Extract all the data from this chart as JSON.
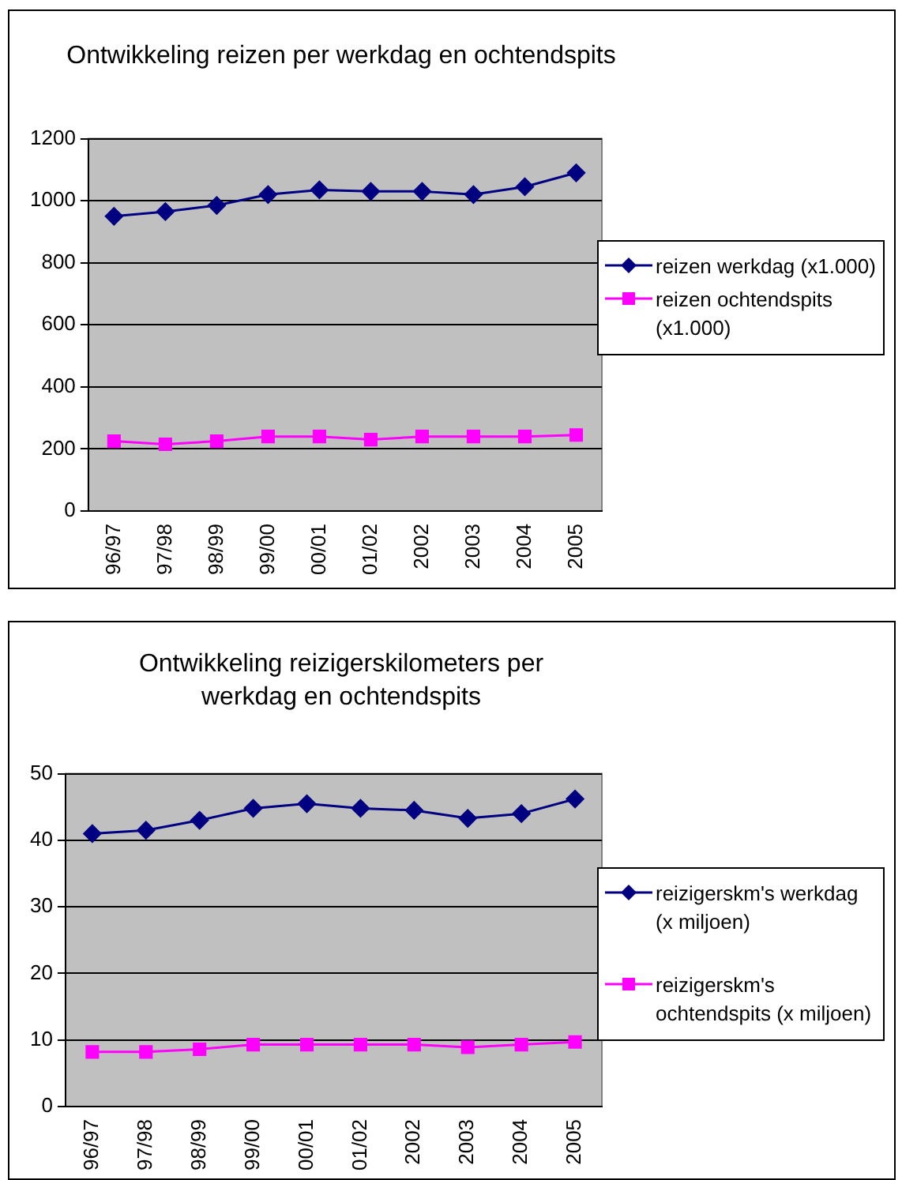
{
  "chart_data": [
    {
      "type": "line",
      "title": "Ontwikkeling reizen per werkdag en ochtendspits",
      "categories": [
        "96/97",
        "97/98",
        "98/99",
        "99/00",
        "00/01",
        "01/02",
        "2002",
        "2003",
        "2004",
        "2005"
      ],
      "series": [
        {
          "name": "reizen werkdag (x1.000)",
          "color": "#000080",
          "marker": "diamond",
          "values": [
            950,
            965,
            985,
            1020,
            1035,
            1030,
            1030,
            1020,
            1045,
            1090
          ]
        },
        {
          "name": "reizen ochtendspits (x1.000)",
          "color": "#ff00ff",
          "marker": "square",
          "values": [
            225,
            215,
            225,
            240,
            240,
            230,
            240,
            240,
            240,
            245
          ]
        }
      ],
      "ylim": [
        0,
        1200
      ],
      "yticks": [
        0,
        200,
        400,
        600,
        800,
        1000,
        1200
      ],
      "grid": "y",
      "legend": "right"
    },
    {
      "type": "line",
      "title": "Ontwikkeling reizigerskilometers per werkdag en ochtendspits",
      "categories": [
        "96/97",
        "97/98",
        "98/99",
        "99/00",
        "00/01",
        "01/02",
        "2002",
        "2003",
        "2004",
        "2005"
      ],
      "series": [
        {
          "name": "reizigerskm's werkdag (x miljoen)",
          "color": "#000080",
          "marker": "diamond",
          "values": [
            41,
            41.5,
            43,
            44.8,
            45.5,
            44.8,
            44.5,
            43.3,
            44,
            46.2
          ]
        },
        {
          "name": "reizigerskm's ochtendspits (x miljoen)",
          "color": "#ff00ff",
          "marker": "square",
          "values": [
            8.2,
            8.2,
            8.6,
            9.3,
            9.3,
            9.3,
            9.3,
            8.9,
            9.3,
            9.7
          ]
        }
      ],
      "ylim": [
        0,
        50
      ],
      "yticks": [
        0,
        10,
        20,
        30,
        40,
        50
      ],
      "grid": "y",
      "legend": "right"
    }
  ]
}
